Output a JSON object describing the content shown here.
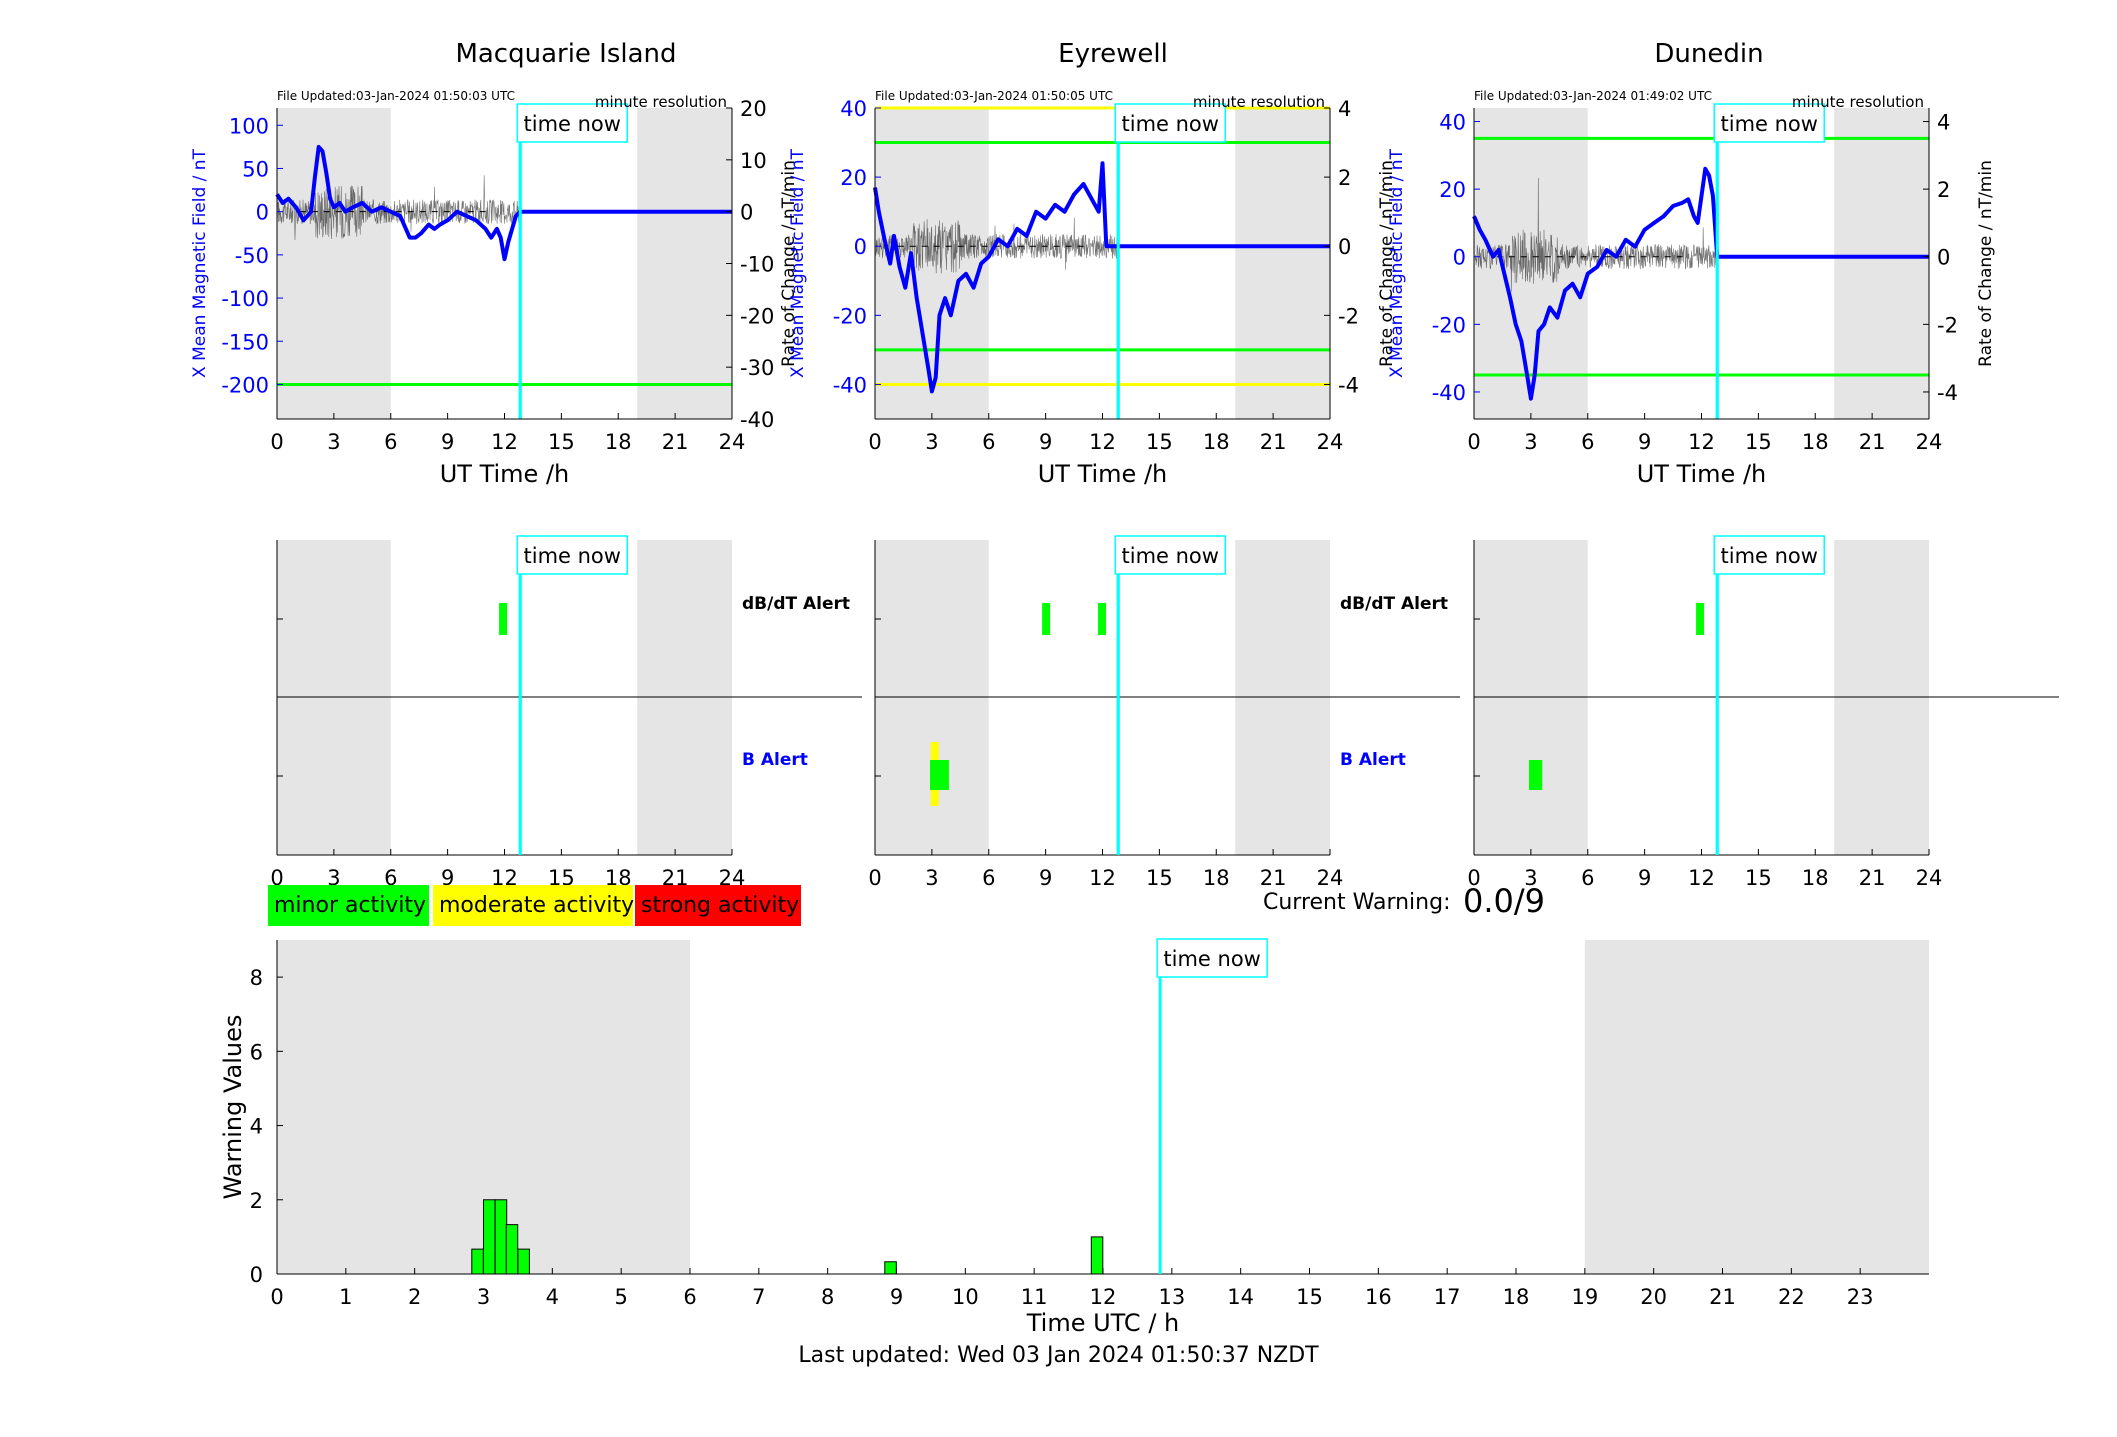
{
  "stations": [
    {
      "name": "Macquarie Island",
      "file_updated": "File Updated:03-Jan-2024 01:50:03 UTC"
    },
    {
      "name": "Eyrewell",
      "file_updated": "File Updated:03-Jan-2024 01:50:05 UTC"
    },
    {
      "name": "Dunedin",
      "file_updated": "File Updated:03-Jan-2024 01:49:02 UTC"
    }
  ],
  "labels": {
    "resolution": "minute resolution",
    "time_now": "time now",
    "y_left": "X Mean Magnetic Field / nT",
    "y_right": "Rate of Change / nT/min",
    "x_axis": "UT Time /h",
    "dbdt_alert": "dB/dT Alert",
    "b_alert": "B Alert",
    "bottom_x": "Time UTC / h",
    "bottom_y": "Warning Values"
  },
  "legend": {
    "minor": "minor activity",
    "moderate": "moderate activity",
    "strong": "strong activity"
  },
  "current_warning": {
    "label": "Current Warning:",
    "value": "0.0/9"
  },
  "footer": "Last updated: Wed 03 Jan 2024 01:50:37 NZDT",
  "colors": {
    "field": "#0000ff",
    "rate": "#000000",
    "now_line": "#00ffff",
    "minor": "#00ff00",
    "moderate": "#ffff00",
    "strong": "#ff0000",
    "night_shade": "#e5e5e5"
  },
  "chart_data": [
    {
      "type": "line",
      "station": "Macquarie Island",
      "xlabel": "UT Time /h",
      "ylabel": "X Mean Magnetic Field / nT",
      "ylabel_right": "Rate of Change / nT/min",
      "xlim": [
        0,
        24
      ],
      "ylim": [
        -240,
        120
      ],
      "ylim_right": [
        -40,
        20
      ],
      "xticks": [
        0,
        3,
        6,
        9,
        12,
        15,
        18,
        21,
        24
      ],
      "yticks": [
        -200,
        -150,
        -100,
        -50,
        0,
        50,
        100
      ],
      "yticks_right": [
        -40,
        -30,
        -20,
        -10,
        0,
        10,
        20
      ],
      "night_shade": [
        [
          0,
          6
        ],
        [
          19,
          24
        ]
      ],
      "time_now": 12.83,
      "thresholds": [
        {
          "y": -200,
          "color": "#00ff00"
        }
      ],
      "series": [
        {
          "name": "X Mean Magnetic Field",
          "x": [
            0,
            0.3,
            0.6,
            1.0,
            1.4,
            1.8,
            2.0,
            2.2,
            2.4,
            2.6,
            2.8,
            3.0,
            3.3,
            3.6,
            4.0,
            4.5,
            5.0,
            5.5,
            6.0,
            6.5,
            7.0,
            7.3,
            7.6,
            8.0,
            8.3,
            8.6,
            9.0,
            9.5,
            10.0,
            10.5,
            11.0,
            11.3,
            11.6,
            11.8,
            12.0,
            12.2,
            12.4,
            12.6,
            12.83,
            24
          ],
          "y": [
            20,
            10,
            15,
            5,
            -10,
            0,
            40,
            75,
            70,
            45,
            15,
            5,
            10,
            0,
            5,
            10,
            0,
            5,
            0,
            -5,
            -30,
            -30,
            -25,
            -15,
            -20,
            -15,
            -10,
            0,
            -5,
            -10,
            -20,
            -30,
            -20,
            -30,
            -55,
            -35,
            -20,
            -5,
            0,
            0
          ]
        }
      ]
    },
    {
      "type": "line",
      "station": "Eyrewell",
      "xlabel": "UT Time /h",
      "ylabel": "X Mean Magnetic Field / nT",
      "ylabel_right": "Rate of Change / nT/min",
      "xlim": [
        0,
        24
      ],
      "ylim": [
        -50,
        40
      ],
      "ylim_right": [
        -5,
        4
      ],
      "xticks": [
        0,
        3,
        6,
        9,
        12,
        15,
        18,
        21,
        24
      ],
      "yticks": [
        -40,
        -20,
        0,
        20,
        40
      ],
      "yticks_right": [
        -4,
        -2,
        0,
        2,
        4
      ],
      "night_shade": [
        [
          0,
          6
        ],
        [
          19,
          24
        ]
      ],
      "time_now": 12.83,
      "thresholds": [
        {
          "y": 40,
          "color": "#ffff00"
        },
        {
          "y": 30,
          "color": "#00ff00"
        },
        {
          "y": -30,
          "color": "#00ff00"
        },
        {
          "y": -40,
          "color": "#ffff00"
        }
      ],
      "series": [
        {
          "name": "X Mean Magnetic Field",
          "x": [
            0,
            0.2,
            0.5,
            0.8,
            1.0,
            1.3,
            1.6,
            1.9,
            2.2,
            2.5,
            2.8,
            3.0,
            3.2,
            3.4,
            3.7,
            4.0,
            4.4,
            4.8,
            5.2,
            5.6,
            6.0,
            6.5,
            7.0,
            7.5,
            8.0,
            8.5,
            9.0,
            9.5,
            10.0,
            10.5,
            11.0,
            11.3,
            11.6,
            11.8,
            12.0,
            12.2,
            12.83,
            24
          ],
          "y": [
            17,
            10,
            2,
            -5,
            3,
            -6,
            -12,
            -2,
            -15,
            -25,
            -35,
            -42,
            -38,
            -20,
            -15,
            -20,
            -10,
            -8,
            -12,
            -5,
            -3,
            2,
            0,
            5,
            3,
            10,
            8,
            12,
            10,
            15,
            18,
            15,
            12,
            10,
            24,
            0,
            0,
            0
          ]
        }
      ]
    },
    {
      "type": "line",
      "station": "Dunedin",
      "xlabel": "UT Time /h",
      "ylabel": "X Mean Magnetic Field / nT",
      "ylabel_right": "Rate of Change / nT/min",
      "xlim": [
        0,
        24
      ],
      "ylim": [
        -48,
        44
      ],
      "ylim_right": [
        -4.8,
        4.4
      ],
      "xticks": [
        0,
        3,
        6,
        9,
        12,
        15,
        18,
        21,
        24
      ],
      "yticks": [
        -40,
        -20,
        0,
        20,
        40
      ],
      "yticks_right": [
        -4,
        -2,
        0,
        2,
        4
      ],
      "night_shade": [
        [
          0,
          6
        ],
        [
          19,
          24
        ]
      ],
      "time_now": 12.83,
      "thresholds": [
        {
          "y": 35,
          "color": "#00ff00"
        },
        {
          "y": -35,
          "color": "#00ff00"
        }
      ],
      "series": [
        {
          "name": "X Mean Magnetic Field",
          "x": [
            0,
            0.3,
            0.6,
            1.0,
            1.3,
            1.6,
            1.9,
            2.2,
            2.5,
            2.8,
            3.0,
            3.2,
            3.4,
            3.7,
            4.0,
            4.4,
            4.8,
            5.2,
            5.6,
            6.0,
            6.5,
            7.0,
            7.5,
            8.0,
            8.5,
            9.0,
            9.5,
            10.0,
            10.5,
            11.0,
            11.3,
            11.6,
            11.8,
            12.0,
            12.2,
            12.4,
            12.6,
            12.83,
            24
          ],
          "y": [
            12,
            8,
            5,
            0,
            2,
            -5,
            -12,
            -20,
            -25,
            -35,
            -42,
            -35,
            -22,
            -20,
            -15,
            -18,
            -10,
            -8,
            -12,
            -5,
            -3,
            2,
            0,
            5,
            3,
            8,
            10,
            12,
            15,
            16,
            17,
            12,
            10,
            18,
            26,
            24,
            18,
            0,
            0
          ]
        }
      ]
    },
    {
      "type": "bar",
      "panel": "alerts",
      "station": "Macquarie Island",
      "xlim": [
        0,
        24
      ],
      "xticks": [
        0,
        3,
        6,
        9,
        12,
        15,
        18,
        21,
        24
      ],
      "rows": [
        "dB/dT Alert",
        "B Alert"
      ],
      "night_shade": [
        [
          0,
          6
        ],
        [
          19,
          24
        ]
      ],
      "time_now": 12.83,
      "alerts": [
        {
          "row": "dB/dT Alert",
          "start": 11.75,
          "end": 12.1,
          "level": "minor"
        }
      ]
    },
    {
      "type": "bar",
      "panel": "alerts",
      "station": "Eyrewell",
      "xlim": [
        0,
        24
      ],
      "xticks": [
        0,
        3,
        6,
        9,
        12,
        15,
        18,
        21,
        24
      ],
      "rows": [
        "dB/dT Alert",
        "B Alert"
      ],
      "night_shade": [
        [
          0,
          6
        ],
        [
          19,
          24
        ]
      ],
      "time_now": 12.83,
      "alerts": [
        {
          "row": "dB/dT Alert",
          "start": 8.85,
          "end": 9.2,
          "level": "minor"
        },
        {
          "row": "dB/dT Alert",
          "start": 11.8,
          "end": 12.15,
          "level": "minor"
        },
        {
          "row": "B Alert",
          "start": 2.9,
          "end": 3.4,
          "level": "moderate"
        },
        {
          "row": "B Alert",
          "start": 2.9,
          "end": 3.9,
          "level": "minor"
        }
      ]
    },
    {
      "type": "bar",
      "panel": "alerts",
      "station": "Dunedin",
      "xlim": [
        0,
        24
      ],
      "xticks": [
        0,
        3,
        6,
        9,
        12,
        15,
        18,
        21,
        24
      ],
      "rows": [
        "dB/dT Alert",
        "B Alert"
      ],
      "night_shade": [
        [
          0,
          6
        ],
        [
          19,
          24
        ]
      ],
      "time_now": 12.83,
      "alerts": [
        {
          "row": "dB/dT Alert",
          "start": 11.75,
          "end": 12.1,
          "level": "minor"
        },
        {
          "row": "B Alert",
          "start": 2.9,
          "end": 3.6,
          "level": "minor"
        }
      ]
    },
    {
      "type": "bar",
      "panel": "warning",
      "xlabel": "Time UTC / h",
      "ylabel": "Warning Values",
      "xlim": [
        0,
        24
      ],
      "ylim": [
        0,
        9
      ],
      "xticks": [
        0,
        1,
        2,
        3,
        4,
        5,
        6,
        7,
        8,
        9,
        10,
        11,
        12,
        13,
        14,
        15,
        16,
        17,
        18,
        19,
        20,
        21,
        22,
        23
      ],
      "yticks": [
        0,
        2,
        4,
        6,
        8
      ],
      "night_shade": [
        [
          0,
          6
        ],
        [
          19,
          24
        ]
      ],
      "time_now": 12.83,
      "x": [
        2.83,
        3.0,
        3.17,
        3.33,
        3.5,
        8.83,
        11.83
      ],
      "values": [
        0.67,
        2,
        2,
        1.33,
        0.67,
        0.33,
        1
      ],
      "bar_width": 0.167
    }
  ]
}
